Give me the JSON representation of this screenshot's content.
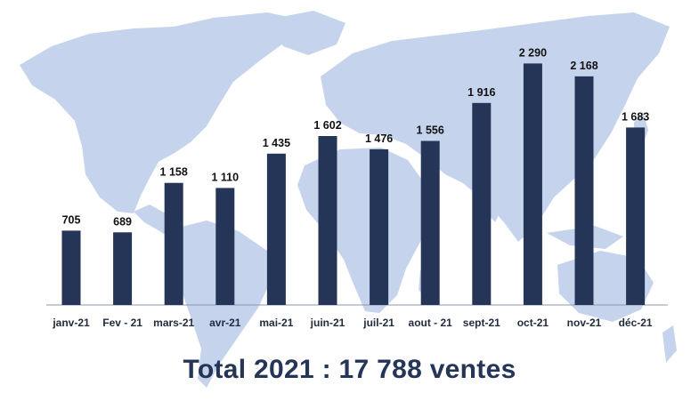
{
  "chart_data": {
    "type": "bar",
    "categories": [
      "janv-21",
      "Fev - 21",
      "mars-21",
      "avr-21",
      "mai-21",
      "juin-21",
      "juil-21",
      "aout - 21",
      "sept-21",
      "oct-21",
      "nov-21",
      "déc-21"
    ],
    "values": [
      705,
      689,
      1158,
      1110,
      1435,
      1602,
      1476,
      1556,
      1916,
      2290,
      2168,
      1683
    ],
    "value_labels": [
      "705",
      "689",
      "1 158",
      "1 110",
      "1 435",
      "1 602",
      "1 476",
      "1 556",
      "1 916",
      "2 290",
      "2 168",
      "1 683"
    ],
    "ylim": [
      0,
      2500
    ],
    "grid": false,
    "bar_color": "#253558",
    "background": "world map silhouette in light blue",
    "map_color": "#c5d4ec"
  },
  "footer": {
    "total_text": "Total 2021 : 17 788 ventes"
  }
}
